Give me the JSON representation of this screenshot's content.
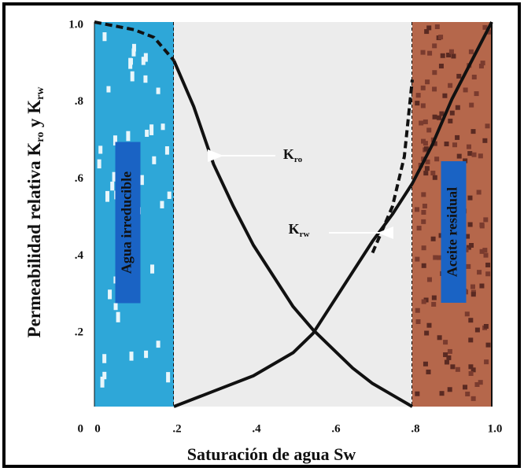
{
  "chart_data": {
    "type": "line",
    "xlabel": "Saturación de agua Sw",
    "ylabel": [
      "Permeabilidad relativa K",
      "ro",
      " y K",
      "rw"
    ],
    "xlim": [
      0,
      1
    ],
    "ylim": [
      0,
      1
    ],
    "xticks": [
      0,
      {
        "value": 0.2,
        "label": ".2"
      },
      {
        "value": 0.4,
        "label": ".4"
      },
      {
        "value": 0.6,
        "label": ".6"
      },
      {
        "value": 0.8,
        "label": ".8"
      },
      {
        "value": 1,
        "label": "1.0"
      }
    ],
    "yticks": [
      0,
      {
        "value": 0.2,
        "label": ".2"
      },
      {
        "value": 0.4,
        "label": ".4"
      },
      {
        "value": 0.6,
        "label": ".6"
      },
      {
        "value": 0.8,
        "label": ".8"
      },
      {
        "value": 1,
        "label": "1.0"
      }
    ],
    "regions": [
      {
        "xlim": [
          0,
          0.2
        ],
        "color": "#2ea7d8",
        "label": "Agua irreducible"
      },
      {
        "xlim": [
          0.2,
          0.8
        ],
        "color": "#ececec"
      },
      {
        "xlim": [
          0.8,
          1
        ],
        "color": "#b5674b",
        "label": "Aceite residual"
      }
    ],
    "series": [
      {
        "color": "#111111",
        "dashed": false,
        "x": [
          0.2,
          0.25,
          0.3,
          0.35,
          0.4,
          0.45,
          0.5,
          0.55,
          0.6,
          0.65,
          0.7,
          0.75,
          0.8
        ],
        "values": [
          0.9,
          0.78,
          0.63,
          0.52,
          0.42,
          0.34,
          0.26,
          0.2,
          0.15,
          0.1,
          0.06,
          0.03,
          0
        ]
      },
      {
        "color": "#111111",
        "dashed": true,
        "x": [
          0,
          0.05,
          0.1,
          0.15,
          0.2
        ],
        "values": [
          1,
          0.99,
          0.98,
          0.96,
          0.9
        ]
      },
      {
        "color": "#111111",
        "dashed": false,
        "x": [
          0.2,
          0.3,
          0.4,
          0.5,
          0.55,
          0.6,
          0.65,
          0.7,
          0.75,
          0.8,
          0.85,
          0.9,
          0.95,
          1
        ],
        "values": [
          0,
          0.04,
          0.08,
          0.14,
          0.19,
          0.27,
          0.35,
          0.43,
          0.5,
          0.58,
          0.68,
          0.8,
          0.9,
          1
        ]
      },
      {
        "color": "#111111",
        "dashed": true,
        "x": [
          0.7,
          0.75,
          0.78,
          0.8
        ],
        "values": [
          0.4,
          0.52,
          0.65,
          0.85
        ]
      }
    ],
    "annotations": [
      [
        "K",
        "ro"
      ],
      [
        "K",
        "rw"
      ]
    ]
  }
}
